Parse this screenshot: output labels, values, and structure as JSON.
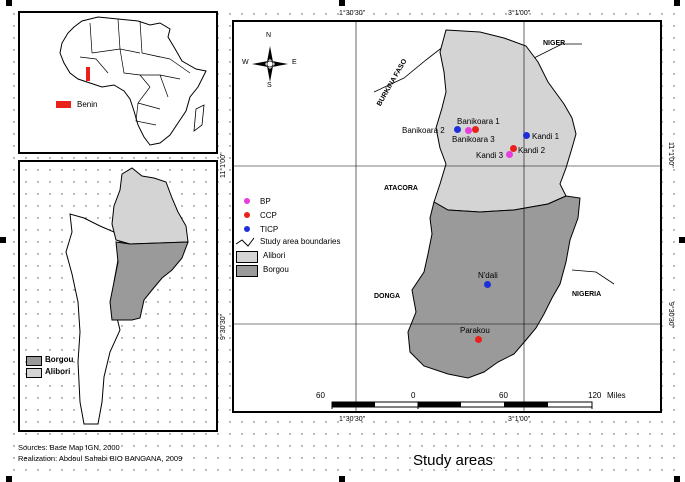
{
  "title": "Study areas",
  "sources": "Sources: Base Map IGN, 2000",
  "realization": "Realization: Abdoul Sahabi BIO BANGANA, 2009",
  "grid_labels": {
    "top_lon_1": "1°30'30\"",
    "top_lon_2": "3°1'00\"",
    "bottom_lon_1": "1°30'30\"",
    "bottom_lon_2": "3°1'00\"",
    "left_lat_1": "11°1'00\"",
    "left_lat_2": "9°30'30\"",
    "right_lat_1": "11°1'00\"",
    "right_lat_2": "9°30'30\""
  },
  "compass": {
    "n": "N",
    "s": "S",
    "e": "E",
    "w": "W"
  },
  "africa_inset": {
    "legend_label": "Benin",
    "legend_color": "#e8211a"
  },
  "benin_inset": {
    "legend": [
      {
        "label": "Borgou",
        "color": "#9a9a9a"
      },
      {
        "label": "Alibori",
        "color": "#d4d4d4"
      }
    ]
  },
  "main_map": {
    "countries": {
      "niger": "NIGER",
      "burkina": "BURKINA FASO",
      "nigeria": "NIGERIA",
      "atacora": "ATACORA",
      "donga": "DONGA"
    },
    "points": [
      {
        "name": "Banikoara 1",
        "type": "CCP"
      },
      {
        "name": "Banikoara 2",
        "type": "TICP"
      },
      {
        "name": "Banikoara 3",
        "type": "BP"
      },
      {
        "name": "Kandi 1",
        "type": "TICP"
      },
      {
        "name": "Kandi 2",
        "type": "CCP"
      },
      {
        "name": "Kandi 3",
        "type": "BP"
      },
      {
        "name": "N'dali",
        "type": "TICP"
      },
      {
        "name": "Parakou",
        "type": "CCP"
      }
    ],
    "legend": [
      {
        "label": "BP",
        "color": "#e83cdc"
      },
      {
        "label": "CCP",
        "color": "#e8211a"
      },
      {
        "label": "TICP",
        "color": "#1f2fd8"
      },
      {
        "label": "Study area boundaries"
      },
      {
        "label": "Alibori",
        "color": "#d4d4d4"
      },
      {
        "label": "Borgou",
        "color": "#9a9a9a"
      }
    ],
    "scale": {
      "labels": [
        "60",
        "0",
        "60",
        "120"
      ],
      "unit": "Miles"
    }
  }
}
